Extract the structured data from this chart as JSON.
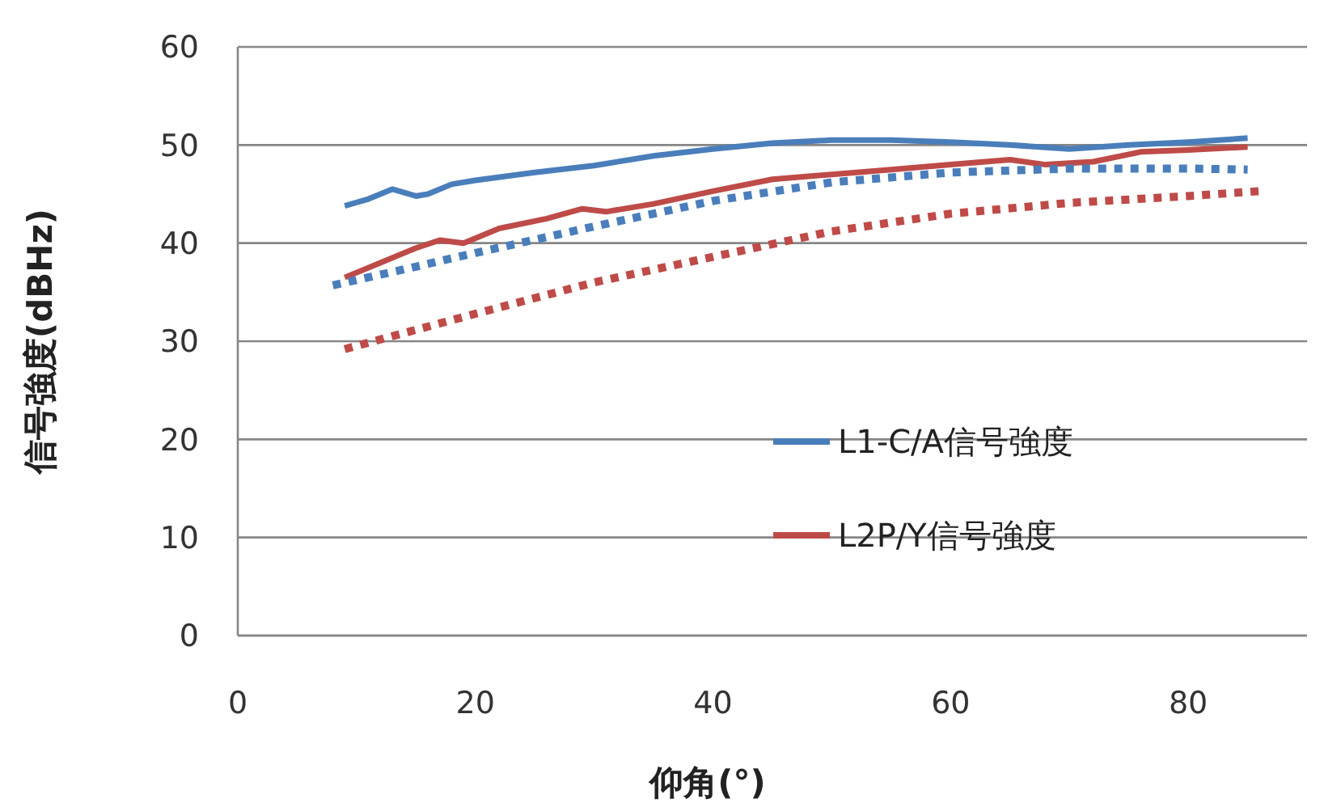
{
  "chart_data": {
    "type": "line",
    "xlabel": "仰角(°)",
    "ylabel": "信号強度(dBHz)",
    "xlim": [
      0,
      90
    ],
    "ylim": [
      0,
      60
    ],
    "xticks": [
      0,
      20,
      40,
      60,
      80
    ],
    "yticks": [
      0,
      10,
      20,
      30,
      40,
      50,
      60
    ],
    "grid": "y",
    "legend": "bottom right",
    "series": [
      {
        "name": "L1-C/A信号強度",
        "color": "#4a7ebb",
        "x": [
          9,
          11,
          13,
          15,
          16,
          18,
          20,
          25,
          30,
          35,
          40,
          45,
          50,
          55,
          60,
          65,
          70,
          75,
          80,
          85
        ],
        "values": [
          43.8,
          44.5,
          45.5,
          44.8,
          45,
          46,
          46.4,
          47.2,
          47.9,
          48.9,
          49.6,
          50.2,
          50.5,
          50.5,
          50.3,
          50,
          49.6,
          50,
          50.3,
          50.7
        ]
      },
      {
        "name": "L2P/Y信号強度",
        "color": "#be4b48",
        "x": [
          9,
          12,
          15,
          17,
          19,
          22,
          26,
          29,
          31,
          35,
          40,
          45,
          50,
          55,
          60,
          65,
          68,
          72,
          76,
          80,
          85
        ],
        "values": [
          36.5,
          38,
          39.5,
          40.3,
          40,
          41.5,
          42.5,
          43.5,
          43.2,
          44,
          45.3,
          46.5,
          47,
          47.5,
          48,
          48.5,
          48,
          48.3,
          49.3,
          49.5,
          49.8
        ]
      },
      {
        "color": "#4a7ebb",
        "line_style": "dotted",
        "x": [
          8,
          15,
          20,
          30,
          40,
          50,
          60,
          70,
          80,
          85
        ],
        "values": [
          35.7,
          37.6,
          39,
          41.7,
          44.3,
          46.2,
          47.2,
          47.6,
          47.6,
          47.5
        ]
      },
      {
        "color": "#be4b48",
        "line_style": "dotted",
        "x": [
          9,
          20,
          30,
          40,
          50,
          60,
          70,
          80,
          86
        ],
        "values": [
          29.2,
          32.8,
          36,
          38.6,
          41.2,
          43,
          44.1,
          44.8,
          45.3
        ]
      }
    ]
  }
}
